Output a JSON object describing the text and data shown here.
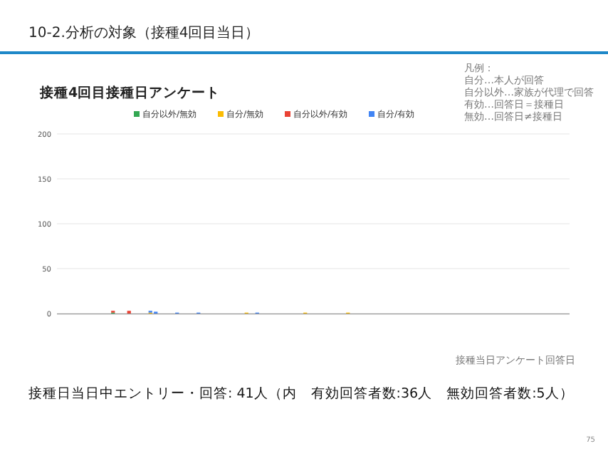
{
  "chart_data": {
    "type": "bar",
    "title": "接種4回目接種日アンケート",
    "annotations": [
      "10-2.分析の対象（接種4回目当日）",
      "凡例：",
      "自分…本人が回答",
      "自分以外…家族が代理で回答",
      "有効…回答日＝接種日",
      "無効…回答日≠接種日",
      "接種日当日中エントリー・回答: 41人（内　有効回答者数:36人　無効回答者数:5人）",
      "75",
      "接種当日アンケート回答日"
    ],
    "categories": [
      null,
      null,
      null,
      null,
      null,
      null,
      null,
      null,
      null,
      null,
      null,
      null,
      null,
      null,
      null,
      null,
      null,
      null,
      null,
      null,
      null,
      null,
      null,
      null,
      null,
      null,
      null,
      null,
      null,
      null,
      null,
      null,
      null,
      null,
      null,
      null,
      null,
      null,
      null,
      null,
      null,
      null,
      null,
      null,
      null,
      null,
      null,
      null,
      null,
      null,
      null,
      null,
      null,
      null,
      null,
      null,
      null,
      null,
      null,
      null,
      null,
      null,
      null,
      null,
      null,
      null,
      null,
      null,
      null,
      null,
      null,
      null,
      null,
      null,
      null,
      null,
      null,
      null,
      null,
      null,
      null,
      null,
      null,
      null,
      null,
      null,
      null,
      null,
      null,
      null,
      null,
      null,
      null,
      null,
      null,
      null
    ],
    "stacked": true,
    "ylim": [
      0,
      200
    ],
    "yticks": [
      0,
      50,
      100,
      150,
      200
    ],
    "grid": "y",
    "legend": "top",
    "series": [
      {
        "name": "自分以外/無効",
        "color": "#34a853",
        "values": [
          0,
          0,
          0,
          0,
          0,
          0,
          0,
          0,
          0,
          0,
          1,
          0,
          0,
          0,
          0,
          0,
          0,
          0,
          0,
          0,
          0,
          0,
          0,
          0,
          0,
          0,
          0,
          0,
          0,
          0,
          0,
          0,
          0,
          0,
          0,
          0,
          0,
          0,
          0,
          0,
          0,
          0,
          0,
          0,
          0,
          0,
          0,
          0,
          0,
          0,
          0,
          0,
          0,
          0,
          0,
          0,
          0,
          0,
          0,
          0,
          0,
          0,
          0,
          0,
          0,
          0,
          0,
          0,
          0,
          0,
          0,
          0,
          0,
          0,
          0,
          0,
          0,
          0,
          0,
          0,
          0,
          0,
          0,
          0,
          0,
          0,
          0,
          0,
          0,
          0,
          0,
          0,
          0,
          0,
          0,
          0
        ]
      },
      {
        "name": "自分/無効",
        "color": "#fbbc04",
        "values": [
          0,
          0,
          0,
          0,
          0,
          0,
          0,
          0,
          0,
          0,
          0,
          0,
          0,
          0,
          0,
          0,
          0,
          1,
          0,
          0,
          0,
          0,
          0,
          0,
          0,
          0,
          0,
          0,
          0,
          0,
          0,
          0,
          0,
          0,
          0,
          1,
          0,
          0,
          0,
          0,
          0,
          0,
          0,
          0,
          0,
          0,
          1,
          0,
          0,
          0,
          0,
          0,
          0,
          0,
          1,
          0,
          0,
          0,
          0,
          0,
          0,
          0,
          0,
          0,
          0,
          0,
          0,
          0,
          0,
          0,
          0,
          0,
          0,
          0,
          0,
          0,
          0,
          0,
          0,
          0,
          0,
          0,
          0,
          0,
          0,
          0,
          0,
          0,
          0,
          0,
          0,
          0,
          0,
          0,
          0,
          0
        ]
      },
      {
        "name": "自分以外/有効",
        "color": "#ea4335",
        "values": [
          0,
          0,
          0,
          0,
          0,
          0,
          0,
          0,
          0,
          0,
          2,
          0,
          0,
          3,
          0,
          0,
          0,
          0,
          0,
          0,
          0,
          0,
          0,
          0,
          0,
          0,
          0,
          0,
          0,
          0,
          0,
          0,
          0,
          0,
          0,
          0,
          0,
          0,
          0,
          0,
          0,
          0,
          0,
          0,
          0,
          0,
          0,
          0,
          0,
          0,
          0,
          0,
          0,
          0,
          0,
          0,
          0,
          0,
          0,
          0,
          0,
          0,
          0,
          0,
          0,
          0,
          0,
          0,
          0,
          0,
          0,
          0,
          0,
          0,
          0,
          0,
          0,
          0,
          0,
          0,
          0,
          0,
          0,
          0,
          0,
          0,
          0,
          0,
          0,
          0,
          0,
          0,
          0,
          0,
          0,
          0
        ]
      },
      {
        "name": "自分/有効",
        "color": "#4285f4",
        "values": [
          0,
          0,
          0,
          0,
          0,
          0,
          0,
          0,
          0,
          0,
          0,
          0,
          0,
          0,
          0,
          0,
          0,
          2,
          2,
          0,
          0,
          0,
          1,
          0,
          0,
          0,
          1,
          0,
          0,
          0,
          0,
          0,
          0,
          0,
          0,
          0,
          0,
          1,
          0,
          0,
          0,
          0,
          0,
          0,
          0,
          0,
          0,
          0,
          0,
          0,
          0,
          0,
          0,
          0,
          0,
          0,
          0,
          0,
          0,
          0,
          0,
          0,
          0,
          0,
          0,
          0,
          0,
          0,
          0,
          0,
          0,
          0,
          0,
          0,
          0,
          0,
          0,
          0,
          0,
          0,
          0,
          0,
          0,
          0,
          0,
          0,
          0,
          0,
          0,
          0,
          0,
          0,
          0,
          0,
          0,
          0
        ]
      }
    ]
  }
}
